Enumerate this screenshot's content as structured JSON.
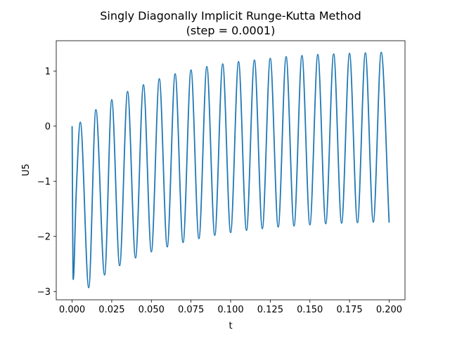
{
  "chart_data": {
    "type": "line",
    "title": "Singly Diagonally Implicit Runge-Kutta Method",
    "subtitle": "(step = 0.0001)",
    "xlabel": "t",
    "ylabel": "U5",
    "xlim": [
      -0.01,
      0.21
    ],
    "ylim": [
      -3.15,
      1.55
    ],
    "grid": false,
    "x_ticks": [
      0.0,
      0.025,
      0.05,
      0.075,
      0.1,
      0.125,
      0.15,
      0.175,
      0.2
    ],
    "x_tick_labels": [
      "0.000",
      "0.025",
      "0.050",
      "0.075",
      "0.100",
      "0.125",
      "0.150",
      "0.175",
      "0.200"
    ],
    "y_ticks": [
      -3,
      -2,
      -1,
      0,
      1
    ],
    "y_tick_labels": [
      "−3",
      "−2",
      "−1",
      "0",
      "1"
    ],
    "series": [
      {
        "color": "#1f77b4",
        "x": [
          0.0,
          0.0007,
          0.0026,
          0.0052,
          0.0105,
          0.015,
          0.0205,
          0.025,
          0.03,
          0.035,
          0.04,
          0.045,
          0.05,
          0.055,
          0.06,
          0.065,
          0.07,
          0.075,
          0.08,
          0.085,
          0.09,
          0.095,
          0.1,
          0.105,
          0.11,
          0.115,
          0.12,
          0.125,
          0.13,
          0.135,
          0.14,
          0.145,
          0.15,
          0.155,
          0.16,
          0.165,
          0.17,
          0.175,
          0.18,
          0.185,
          0.19,
          0.195,
          0.2
        ],
        "y": [
          0.0,
          -2.78,
          -1.2,
          0.07,
          -2.93,
          0.3,
          -2.7,
          0.48,
          -2.53,
          0.63,
          -2.39,
          0.75,
          -2.28,
          0.86,
          -2.19,
          0.95,
          -2.11,
          1.02,
          -2.04,
          1.08,
          -1.98,
          1.13,
          -1.93,
          1.17,
          -1.89,
          1.2,
          -1.86,
          1.23,
          -1.83,
          1.26,
          -1.81,
          1.28,
          -1.79,
          1.3,
          -1.77,
          1.31,
          -1.76,
          1.32,
          -1.75,
          1.33,
          -1.74,
          1.34,
          -1.75
        ]
      }
    ]
  }
}
